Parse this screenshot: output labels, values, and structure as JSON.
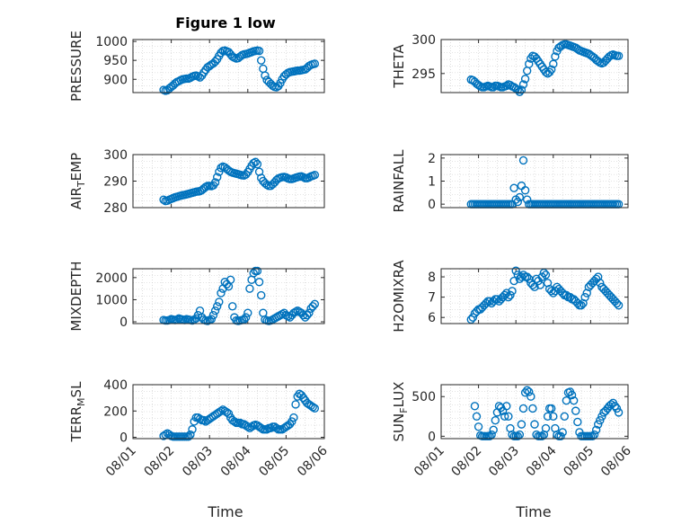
{
  "figure": {
    "title": "Figure 1 low",
    "marker_color": "#0072bd",
    "x_ticks": [
      "08/01",
      "08/02",
      "08/03",
      "08/04",
      "08/05",
      "08/06"
    ]
  },
  "chart_data": [
    {
      "id": "pressure",
      "type": "scatter",
      "ylabel": "PRESSURE",
      "ylabel_sub": "",
      "ylabel_after": "",
      "xlim": [
        0,
        5
      ],
      "ylim": [
        865,
        1005
      ],
      "yticks": [
        900,
        950,
        1000
      ],
      "x": [
        0.8,
        0.85,
        0.9,
        0.95,
        1.0,
        1.05,
        1.1,
        1.15,
        1.2,
        1.25,
        1.3,
        1.35,
        1.4,
        1.45,
        1.5,
        1.55,
        1.6,
        1.65,
        1.7,
        1.75,
        1.8,
        1.85,
        1.9,
        1.95,
        2.0,
        2.05,
        2.1,
        2.15,
        2.2,
        2.25,
        2.3,
        2.35,
        2.4,
        2.45,
        2.5,
        2.55,
        2.6,
        2.65,
        2.7,
        2.75,
        2.8,
        2.85,
        2.9,
        2.95,
        3.0,
        3.05,
        3.1,
        3.15,
        3.2,
        3.25,
        3.3,
        3.35,
        3.4,
        3.45,
        3.5,
        3.55,
        3.6,
        3.65,
        3.7,
        3.75,
        3.8,
        3.85,
        3.9,
        3.95,
        4.0,
        4.05,
        4.1,
        4.15,
        4.2,
        4.25,
        4.3,
        4.35,
        4.4,
        4.45,
        4.5,
        4.55,
        4.6,
        4.65,
        4.7,
        4.75
      ],
      "y": [
        872,
        870,
        871,
        876,
        880,
        884,
        889,
        893,
        895,
        898,
        900,
        901,
        902,
        902,
        904,
        907,
        909,
        910,
        908,
        905,
        910,
        918,
        925,
        932,
        935,
        939,
        942,
        947,
        953,
        962,
        970,
        975,
        976,
        974,
        972,
        966,
        960,
        957,
        955,
        956,
        960,
        964,
        966,
        967,
        968,
        970,
        972,
        974,
        975,
        976,
        975,
        950,
        928,
        910,
        898,
        893,
        888,
        883,
        880,
        879,
        882,
        890,
        900,
        908,
        913,
        917,
        919,
        920,
        921,
        922,
        923,
        923,
        924,
        925,
        926,
        930,
        935,
        938,
        940,
        941
      ]
    },
    {
      "id": "theta",
      "type": "scatter",
      "ylabel": "THETA",
      "ylabel_sub": "",
      "ylabel_after": "",
      "xlim": [
        0,
        5
      ],
      "ylim": [
        292.2,
        300
      ],
      "yticks": [
        295,
        300
      ],
      "x": [
        0.8,
        0.85,
        0.9,
        0.95,
        1.0,
        1.05,
        1.1,
        1.15,
        1.2,
        1.25,
        1.3,
        1.35,
        1.4,
        1.45,
        1.5,
        1.55,
        1.6,
        1.65,
        1.7,
        1.75,
        1.8,
        1.85,
        1.9,
        1.95,
        2.0,
        2.05,
        2.1,
        2.15,
        2.2,
        2.25,
        2.3,
        2.35,
        2.4,
        2.45,
        2.5,
        2.55,
        2.6,
        2.65,
        2.7,
        2.75,
        2.8,
        2.85,
        2.9,
        2.95,
        3.0,
        3.05,
        3.1,
        3.15,
        3.2,
        3.25,
        3.3,
        3.35,
        3.4,
        3.45,
        3.5,
        3.55,
        3.6,
        3.65,
        3.7,
        3.75,
        3.8,
        3.85,
        3.9,
        3.95,
        4.0,
        4.05,
        4.1,
        4.15,
        4.2,
        4.25,
        4.3,
        4.35,
        4.4,
        4.45,
        4.5,
        4.55,
        4.6,
        4.65,
        4.7,
        4.75
      ],
      "y": [
        294.1,
        294.0,
        293.8,
        293.5,
        293.3,
        293.1,
        293.0,
        293.0,
        293.1,
        293.2,
        293.1,
        293.0,
        293.0,
        293.2,
        293.2,
        293.1,
        293.0,
        293.0,
        293.1,
        293.2,
        293.4,
        293.3,
        293.1,
        293.0,
        292.8,
        292.6,
        292.3,
        292.6,
        293.4,
        294.2,
        295.4,
        296.4,
        297.2,
        297.6,
        297.5,
        297.2,
        296.8,
        296.4,
        296.0,
        295.6,
        295.2,
        295.0,
        295.2,
        295.6,
        296.4,
        297.5,
        298.3,
        298.8,
        299.0,
        299.2,
        299.3,
        299.3,
        299.2,
        299.1,
        299.0,
        298.9,
        298.8,
        298.6,
        298.4,
        298.3,
        298.2,
        298.1,
        298.0,
        297.9,
        297.7,
        297.5,
        297.3,
        297.0,
        296.8,
        296.6,
        296.5,
        296.6,
        296.9,
        297.2,
        297.5,
        297.7,
        297.8,
        297.7,
        297.6,
        297.6
      ]
    },
    {
      "id": "air_temp",
      "type": "scatter",
      "ylabel": "AIR",
      "ylabel_sub": "T",
      "ylabel_after": "EMP",
      "xlim": [
        0,
        5
      ],
      "ylim": [
        280,
        300
      ],
      "yticks": [
        280,
        290,
        300
      ],
      "x": [
        0.8,
        0.85,
        0.9,
        0.95,
        1.0,
        1.05,
        1.1,
        1.15,
        1.2,
        1.25,
        1.3,
        1.35,
        1.4,
        1.45,
        1.5,
        1.55,
        1.6,
        1.65,
        1.7,
        1.75,
        1.8,
        1.85,
        1.9,
        1.95,
        2.0,
        2.05,
        2.1,
        2.15,
        2.2,
        2.25,
        2.3,
        2.35,
        2.4,
        2.45,
        2.5,
        2.55,
        2.6,
        2.65,
        2.7,
        2.75,
        2.8,
        2.85,
        2.9,
        2.95,
        3.0,
        3.05,
        3.1,
        3.15,
        3.2,
        3.25,
        3.3,
        3.35,
        3.4,
        3.45,
        3.5,
        3.55,
        3.6,
        3.65,
        3.7,
        3.75,
        3.8,
        3.85,
        3.9,
        3.95,
        4.0,
        4.05,
        4.1,
        4.15,
        4.2,
        4.25,
        4.3,
        4.35,
        4.4,
        4.45,
        4.5,
        4.55,
        4.6,
        4.65,
        4.7,
        4.75
      ],
      "y": [
        283,
        282.5,
        282.6,
        283,
        283.3,
        283.6,
        283.9,
        284.1,
        284.3,
        284.5,
        284.7,
        284.8,
        285,
        285.2,
        285.4,
        285.6,
        285.8,
        286,
        286.1,
        286.2,
        286.6,
        287.2,
        287.8,
        288.2,
        288.2,
        288.1,
        288.4,
        289.5,
        291.5,
        293.5,
        295,
        295.5,
        295.2,
        294.6,
        294,
        293.5,
        293.2,
        293,
        292.8,
        292.6,
        292.4,
        292.2,
        292.1,
        292.5,
        293.4,
        294.6,
        295.8,
        296.8,
        297.2,
        296.4,
        293.5,
        291.2,
        290,
        289.2,
        288.6,
        288.2,
        288.2,
        288.8,
        289.5,
        290.4,
        291,
        291.3,
        291.5,
        291.6,
        291.4,
        291,
        290.8,
        290.8,
        291,
        291.3,
        291.5,
        291.7,
        291.8,
        291.5,
        291.1,
        291.1,
        291.4,
        291.8,
        292,
        292.3
      ]
    },
    {
      "id": "rainfall",
      "type": "scatter",
      "ylabel": "RAINFALL",
      "ylabel_sub": "",
      "ylabel_after": "",
      "xlim": [
        0,
        5
      ],
      "ylim": [
        -0.15,
        2.15
      ],
      "yticks": [
        0,
        1,
        2
      ],
      "x": [
        0.8,
        0.85,
        0.9,
        0.95,
        1.0,
        1.05,
        1.1,
        1.15,
        1.2,
        1.25,
        1.3,
        1.35,
        1.4,
        1.45,
        1.5,
        1.55,
        1.6,
        1.65,
        1.7,
        1.75,
        1.8,
        1.85,
        1.9,
        1.95,
        2.0,
        2.05,
        2.1,
        2.15,
        2.2,
        2.25,
        2.3,
        2.35,
        2.4,
        2.45,
        2.5,
        2.55,
        2.6,
        2.65,
        2.7,
        2.75,
        2.8,
        2.85,
        2.9,
        2.95,
        3.0,
        3.05,
        3.1,
        3.15,
        3.2,
        3.25,
        3.3,
        3.35,
        3.4,
        3.45,
        3.5,
        3.55,
        3.6,
        3.65,
        3.7,
        3.75,
        3.8,
        3.85,
        3.9,
        3.95,
        4.0,
        4.05,
        4.1,
        4.15,
        4.2,
        4.25,
        4.3,
        4.35,
        4.4,
        4.45,
        4.5,
        4.55,
        4.6,
        4.65,
        4.7,
        4.75
      ],
      "y": [
        0,
        0,
        0,
        0,
        0,
        0,
        0,
        0,
        0,
        0,
        0,
        0,
        0,
        0,
        0,
        0,
        0,
        0,
        0,
        0,
        0,
        0,
        0,
        0.7,
        0.2,
        0.1,
        0.3,
        0.8,
        1.9,
        0.6,
        0.2,
        0,
        0,
        0,
        0,
        0,
        0,
        0,
        0,
        0,
        0,
        0,
        0,
        0,
        0,
        0,
        0,
        0,
        0,
        0,
        0,
        0,
        0,
        0,
        0,
        0,
        0,
        0,
        0,
        0,
        0,
        0,
        0,
        0,
        0,
        0,
        0,
        0,
        0,
        0,
        0,
        0,
        0,
        0,
        0,
        0,
        0,
        0,
        0,
        0
      ]
    },
    {
      "id": "mixdepth",
      "type": "scatter",
      "ylabel": "MIXDEPTH",
      "ylabel_sub": "",
      "ylabel_after": "",
      "xlim": [
        0,
        5
      ],
      "ylim": [
        -80,
        2400
      ],
      "yticks": [
        0,
        1000,
        2000
      ],
      "x": [
        0.8,
        0.85,
        0.9,
        0.95,
        1.0,
        1.05,
        1.1,
        1.15,
        1.2,
        1.25,
        1.3,
        1.35,
        1.4,
        1.45,
        1.5,
        1.55,
        1.6,
        1.65,
        1.7,
        1.75,
        1.8,
        1.85,
        1.9,
        1.95,
        2.0,
        2.05,
        2.1,
        2.15,
        2.2,
        2.25,
        2.3,
        2.35,
        2.4,
        2.45,
        2.5,
        2.55,
        2.6,
        2.65,
        2.7,
        2.75,
        2.8,
        2.85,
        2.9,
        2.95,
        3.0,
        3.05,
        3.1,
        3.15,
        3.2,
        3.25,
        3.3,
        3.35,
        3.4,
        3.45,
        3.5,
        3.55,
        3.6,
        3.65,
        3.7,
        3.75,
        3.8,
        3.85,
        3.9,
        3.95,
        4.0,
        4.05,
        4.1,
        4.15,
        4.2,
        4.25,
        4.3,
        4.35,
        4.4,
        4.45,
        4.5,
        4.55,
        4.6,
        4.65,
        4.7,
        4.75
      ],
      "y": [
        80,
        60,
        60,
        80,
        120,
        100,
        80,
        100,
        150,
        120,
        100,
        80,
        120,
        100,
        80,
        60,
        100,
        150,
        300,
        500,
        200,
        100,
        60,
        40,
        80,
        120,
        300,
        500,
        700,
        900,
        1300,
        1500,
        1800,
        1700,
        1600,
        1900,
        700,
        200,
        60,
        40,
        60,
        80,
        100,
        200,
        400,
        1500,
        1900,
        2200,
        2300,
        2300,
        1800,
        1200,
        400,
        100,
        60,
        40,
        60,
        100,
        150,
        200,
        250,
        300,
        350,
        400,
        300,
        250,
        200,
        300,
        400,
        450,
        500,
        450,
        400,
        300,
        200,
        300,
        400,
        600,
        700,
        800
      ]
    },
    {
      "id": "h2omixra",
      "type": "scatter",
      "ylabel": "H2OMIXRA",
      "ylabel_sub": "",
      "ylabel_after": "",
      "xlim": [
        0,
        5
      ],
      "ylim": [
        5.7,
        8.4
      ],
      "yticks": [
        6,
        7,
        8
      ],
      "x": [
        0.8,
        0.85,
        0.9,
        0.95,
        1.0,
        1.05,
        1.1,
        1.15,
        1.2,
        1.25,
        1.3,
        1.35,
        1.4,
        1.45,
        1.5,
        1.55,
        1.6,
        1.65,
        1.7,
        1.75,
        1.8,
        1.85,
        1.9,
        1.95,
        2.0,
        2.05,
        2.1,
        2.15,
        2.2,
        2.25,
        2.3,
        2.35,
        2.4,
        2.45,
        2.5,
        2.55,
        2.6,
        2.65,
        2.7,
        2.75,
        2.8,
        2.85,
        2.9,
        2.95,
        3.0,
        3.05,
        3.1,
        3.15,
        3.2,
        3.25,
        3.3,
        3.35,
        3.4,
        3.45,
        3.5,
        3.55,
        3.6,
        3.65,
        3.7,
        3.75,
        3.8,
        3.85,
        3.9,
        3.95,
        4.0,
        4.05,
        4.1,
        4.15,
        4.2,
        4.25,
        4.3,
        4.35,
        4.4,
        4.45,
        4.5,
        4.55,
        4.6,
        4.65,
        4.7,
        4.75
      ],
      "y": [
        5.9,
        6.0,
        6.2,
        6.3,
        6.4,
        6.4,
        6.5,
        6.6,
        6.7,
        6.8,
        6.8,
        6.7,
        6.8,
        6.9,
        6.9,
        6.8,
        6.9,
        7.0,
        7.1,
        7.2,
        7.0,
        7.1,
        7.3,
        7.8,
        8.3,
        8.1,
        7.9,
        8.0,
        8.1,
        8.0,
        8.0,
        7.9,
        7.7,
        7.6,
        7.5,
        7.9,
        7.8,
        7.6,
        8.0,
        8.2,
        8.1,
        7.7,
        7.4,
        7.3,
        7.2,
        7.3,
        7.5,
        7.4,
        7.3,
        7.2,
        7.1,
        7.1,
        7.0,
        7.0,
        6.9,
        6.9,
        6.8,
        6.7,
        6.6,
        6.6,
        6.7,
        7.0,
        7.2,
        7.5,
        7.6,
        7.7,
        7.8,
        7.9,
        8.0,
        7.7,
        7.5,
        7.4,
        7.3,
        7.2,
        7.1,
        7.0,
        6.9,
        6.8,
        6.7,
        6.6
      ]
    },
    {
      "id": "terr_msl",
      "type": "scatter",
      "ylabel": "TERR",
      "ylabel_sub": "M",
      "ylabel_after": "SL",
      "xlim": [
        0,
        5
      ],
      "ylim": [
        -10,
        400
      ],
      "yticks": [
        0,
        200,
        400
      ],
      "x": [
        0.8,
        0.85,
        0.9,
        0.95,
        1.0,
        1.05,
        1.1,
        1.15,
        1.2,
        1.25,
        1.3,
        1.35,
        1.4,
        1.45,
        1.5,
        1.55,
        1.6,
        1.65,
        1.7,
        1.75,
        1.8,
        1.85,
        1.9,
        1.95,
        2.0,
        2.05,
        2.1,
        2.15,
        2.2,
        2.25,
        2.3,
        2.35,
        2.4,
        2.45,
        2.5,
        2.55,
        2.6,
        2.65,
        2.7,
        2.75,
        2.8,
        2.85,
        2.9,
        2.95,
        3.0,
        3.05,
        3.1,
        3.15,
        3.2,
        3.25,
        3.3,
        3.35,
        3.4,
        3.45,
        3.5,
        3.55,
        3.6,
        3.65,
        3.7,
        3.75,
        3.8,
        3.85,
        3.9,
        3.95,
        4.0,
        4.05,
        4.1,
        4.15,
        4.2,
        4.25,
        4.3,
        4.35,
        4.4,
        4.45,
        4.5,
        4.55,
        4.6,
        4.65,
        4.7,
        4.75
      ],
      "y": [
        10,
        20,
        30,
        20,
        10,
        5,
        5,
        5,
        5,
        5,
        5,
        5,
        5,
        5,
        20,
        60,
        120,
        150,
        150,
        140,
        130,
        130,
        120,
        130,
        140,
        150,
        160,
        170,
        180,
        190,
        200,
        210,
        200,
        190,
        180,
        150,
        130,
        120,
        110,
        110,
        110,
        100,
        100,
        90,
        80,
        70,
        80,
        90,
        95,
        90,
        80,
        70,
        60,
        60,
        60,
        70,
        70,
        80,
        80,
        70,
        60,
        60,
        60,
        70,
        80,
        90,
        100,
        120,
        150,
        250,
        310,
        330,
        320,
        300,
        280,
        260,
        250,
        240,
        230,
        220
      ]
    },
    {
      "id": "sun_flux",
      "type": "scatter",
      "ylabel": "SUN",
      "ylabel_sub": "F",
      "ylabel_after": "LUX",
      "xlim": [
        0,
        5
      ],
      "ylim": [
        -30,
        650
      ],
      "yticks": [
        0,
        500
      ],
      "x": [
        0.9,
        0.95,
        1.0,
        1.05,
        1.1,
        1.15,
        1.2,
        1.25,
        1.3,
        1.35,
        1.4,
        1.45,
        1.5,
        1.55,
        1.6,
        1.65,
        1.7,
        1.75,
        1.8,
        1.85,
        1.9,
        1.95,
        2.0,
        2.05,
        2.1,
        2.15,
        2.2,
        2.25,
        2.3,
        2.35,
        2.4,
        2.45,
        2.5,
        2.55,
        2.6,
        2.65,
        2.7,
        2.75,
        2.8,
        2.85,
        2.9,
        2.95,
        3.0,
        3.05,
        3.1,
        3.15,
        3.2,
        3.25,
        3.3,
        3.35,
        3.4,
        3.45,
        3.5,
        3.55,
        3.6,
        3.65,
        3.7,
        3.75,
        3.8,
        3.85,
        3.9,
        3.95,
        4.0,
        4.05,
        4.1,
        4.15,
        4.2,
        4.25,
        4.3,
        4.35,
        4.4,
        4.45,
        4.5,
        4.55,
        4.6,
        4.65,
        4.7,
        4.75
      ],
      "y": [
        380,
        250,
        120,
        10,
        0,
        0,
        0,
        0,
        0,
        20,
        80,
        200,
        300,
        380,
        360,
        320,
        250,
        380,
        250,
        100,
        20,
        0,
        0,
        0,
        20,
        150,
        350,
        550,
        580,
        560,
        500,
        350,
        150,
        20,
        0,
        0,
        0,
        20,
        100,
        250,
        350,
        350,
        250,
        100,
        20,
        0,
        0,
        50,
        250,
        450,
        550,
        560,
        520,
        450,
        320,
        180,
        50,
        0,
        0,
        0,
        0,
        0,
        0,
        0,
        20,
        80,
        150,
        200,
        250,
        300,
        320,
        350,
        380,
        400,
        420,
        380,
        350,
        300
      ]
    }
  ]
}
